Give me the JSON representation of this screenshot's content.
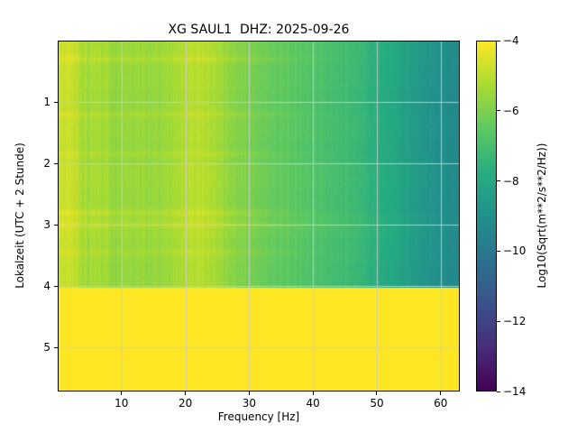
{
  "title": "XG SAUL1  DHZ: 2025-09-26",
  "chart_data": {
    "type": "heatmap",
    "title": "XG SAUL1  DHZ: 2025-09-26",
    "xlabel": "Frequency [Hz]",
    "ylabel": "Lokalzeit (UTC + 2 Stunde)",
    "colorbar_label": "Log10(Sqrt(m**2/s**2/Hz))",
    "xlim": [
      0,
      63
    ],
    "ylim": [
      0,
      5.72
    ],
    "y_direction": "down",
    "clim": [
      -14,
      -4
    ],
    "grid": true,
    "grid_color": "#cccccc",
    "xticks": [
      10,
      20,
      30,
      40,
      50,
      60
    ],
    "yticks": [
      1,
      2,
      3,
      4,
      5
    ],
    "cbar_ticks": [
      {
        "value": -4,
        "label": "−4"
      },
      {
        "value": -6,
        "label": "−6"
      },
      {
        "value": -8,
        "label": "−8"
      },
      {
        "value": -10,
        "label": "−10"
      },
      {
        "value": -12,
        "label": "−12"
      },
      {
        "value": -14,
        "label": "−14"
      }
    ],
    "colormap": "viridis",
    "colormap_stops": [
      "#440154",
      "#472d7b",
      "#3b528b",
      "#2c728e",
      "#21918c",
      "#27ad81",
      "#5ec962",
      "#aadc32",
      "#fde725"
    ],
    "freq_profile_hz_span": [
      0,
      63
    ],
    "freq_profile": [
      -4.75,
      -5.0,
      -5.45,
      -5.25,
      -5.55,
      -5.45,
      -5.55,
      -5.55,
      -5.5,
      -5.3,
      -5.1,
      -5.05,
      -5.3,
      -5.65,
      -5.9,
      -6.1,
      -6.3,
      -6.45,
      -6.55,
      -6.65,
      -6.8,
      -6.95,
      -7.1,
      -7.25,
      -7.45,
      -7.7,
      -7.95,
      -8.2,
      -8.5,
      -8.8,
      -9.05,
      -9.25
    ],
    "time_row_offsets": [
      0.05,
      0.0,
      -0.05,
      0.0,
      -0.05,
      0.05,
      0.0,
      0.1,
      0.0,
      -0.05
    ],
    "bright_time_streaks": [
      {
        "t": 0.3,
        "amp": 0.3
      },
      {
        "t": 1.2,
        "amp": 0.25
      },
      {
        "t": 1.85,
        "amp": 0.25
      },
      {
        "t": 2.8,
        "amp": 0.35
      },
      {
        "t": 3.0,
        "amp": 0.3
      },
      {
        "t": 3.45,
        "amp": 0.2
      }
    ],
    "saturated_region": {
      "t_from": 4.03,
      "t_to": 5.72,
      "value": -4
    }
  }
}
